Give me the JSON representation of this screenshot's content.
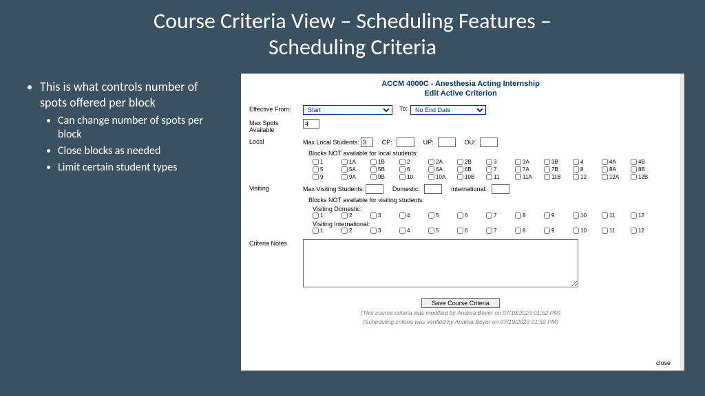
{
  "title_line1": "Course Criteria View – Scheduling Features –",
  "title_line2": "Scheduling Criteria",
  "bullets": {
    "main": "This is what controls number of spots offered per block",
    "sub1": "Can change number of spots per block",
    "sub2": "Close blocks as needed",
    "sub3": "Limit certain student types"
  },
  "app": {
    "course_header": "ACCM 4000C - Anesthesia Acting Internship",
    "sub_header": "Edit Active Criterion",
    "effective_from_label": "Effective From:",
    "effective_from_value": "Start",
    "to_label": "To:",
    "to_value": "No End Date",
    "max_spots_label": "Max Spots Available",
    "max_spots_value": "4",
    "local_label": "Local",
    "max_local_label": "Max Local Students:",
    "max_local_value": "3",
    "cp_label": "CP:",
    "up_label": "UP:",
    "ou_label": "OU:",
    "blocks_not_local_label": "Blocks NOT available for local students:",
    "local_blocks": [
      "1",
      "1A",
      "1B",
      "2",
      "2A",
      "2B",
      "3",
      "3A",
      "3B",
      "4",
      "4A",
      "4B",
      "5",
      "5A",
      "5B",
      "6",
      "6A",
      "6B",
      "7",
      "7A",
      "7B",
      "8",
      "8A",
      "8B",
      "9",
      "9A",
      "9B",
      "10",
      "10A",
      "10B",
      "11",
      "11A",
      "11B",
      "12",
      "12A",
      "12B"
    ],
    "visiting_label": "Visiting",
    "max_visiting_label": "Max Visiting Students:",
    "domestic_label": "Domestic:",
    "international_label": "International:",
    "blocks_not_visiting_label": "Blocks NOT available for visiting students:",
    "visiting_domestic_label": "Visiting Domestic:",
    "visiting_international_label": "Visiting International:",
    "visiting_blocks": [
      "1",
      "2",
      "3",
      "4",
      "5",
      "6",
      "7",
      "8",
      "9",
      "10",
      "11",
      "12"
    ],
    "criteria_notes_label": "Criteria Notes",
    "save_button": "Save Course Criteria",
    "audit1": "(This course criteria was modified by Andrea Beyer on 07/19/2023 01:52 PM)",
    "audit2": "(Scheduling criteria was verified by Andrea Beyer on 07/19/2023 01:52 PM)",
    "close_label": "close"
  }
}
